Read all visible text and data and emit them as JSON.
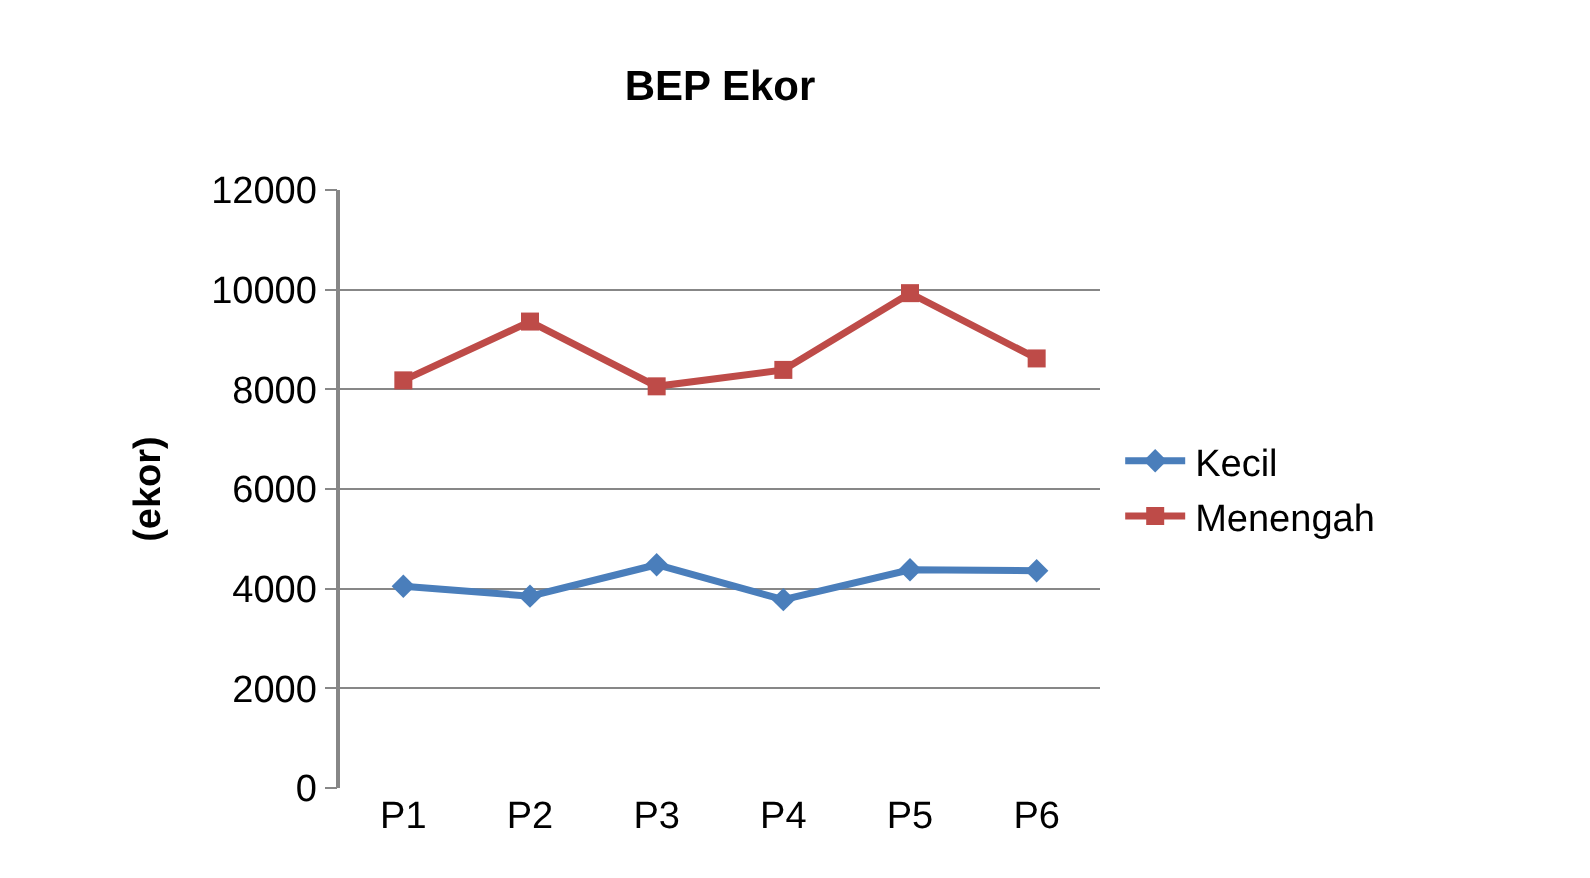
{
  "chart_data": {
    "type": "line",
    "title": "BEP Ekor",
    "ylabel": "(ekor)",
    "categories": [
      "P1",
      "P2",
      "P3",
      "P4",
      "P5",
      "P6"
    ],
    "series": [
      {
        "name": "Kecil",
        "color": "#4a7ebb",
        "marker": "diamond",
        "values": [
          4050,
          3850,
          4480,
          3780,
          4380,
          4360
        ]
      },
      {
        "name": "Menengah",
        "color": "#be4b48",
        "marker": "square",
        "values": [
          8180,
          9360,
          8060,
          8390,
          9930,
          8620
        ]
      }
    ],
    "ylim": [
      0,
      12000
    ],
    "yticks": [
      0,
      2000,
      4000,
      6000,
      8000,
      10000,
      12000
    ],
    "grid": "y",
    "legend": "right"
  }
}
